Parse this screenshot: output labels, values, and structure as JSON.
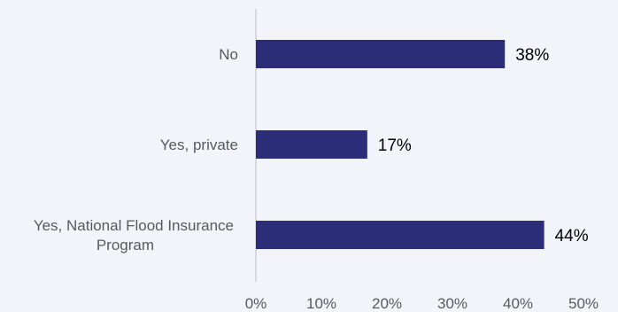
{
  "chart_data": {
    "type": "bar",
    "orientation": "horizontal",
    "categories": [
      [
        "No"
      ],
      [
        "Yes, private"
      ],
      [
        "Yes, National Flood Insurance",
        "Program"
      ]
    ],
    "values": [
      38,
      17,
      44
    ],
    "data_labels": [
      "38%",
      "17%",
      "44%"
    ],
    "xlim": [
      0,
      50
    ],
    "x_ticks": [
      0,
      10,
      20,
      30,
      40,
      50
    ],
    "x_tick_labels": [
      "0%",
      "10%",
      "20%",
      "30%",
      "40%",
      "50%"
    ],
    "grid": false,
    "legend": "none",
    "bar_color": "#2b2d78",
    "axis_color": "#d0d0d8"
  }
}
